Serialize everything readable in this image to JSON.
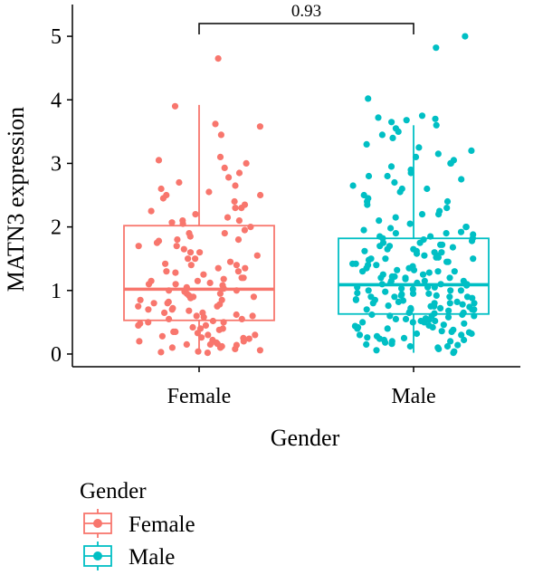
{
  "chart_data": {
    "type": "box",
    "xlabel": "Gender",
    "ylabel": "MATN3 expression",
    "ylim": [
      -0.2,
      5.5
    ],
    "yticks": [
      "0",
      "1",
      "2",
      "3",
      "4",
      "5"
    ],
    "categories": [
      "Female",
      "Male"
    ],
    "series": [
      {
        "name": "Female",
        "color": "#F8766D",
        "box": {
          "min": 0.02,
          "q1": 0.53,
          "median": 1.02,
          "q3": 2.02,
          "max": 3.92
        },
        "points": [
          4.65,
          3.9,
          3.62,
          3.58,
          3.45,
          3.1,
          3.05,
          3.0,
          2.93,
          2.85,
          2.78,
          2.7,
          2.65,
          2.6,
          2.55,
          2.5,
          2.45,
          2.4,
          2.35,
          2.3,
          2.25,
          2.2,
          2.15,
          2.1,
          2.07,
          2.05,
          2.0,
          1.95,
          1.9,
          1.85,
          1.8,
          1.78,
          1.75,
          1.7,
          1.65,
          1.6,
          1.55,
          1.5,
          1.45,
          1.42,
          1.4,
          1.35,
          1.3,
          1.28,
          1.25,
          1.2,
          1.18,
          1.15,
          1.12,
          1.1,
          1.08,
          1.05,
          1.03,
          1.0,
          0.98,
          0.95,
          0.92,
          0.9,
          0.88,
          0.85,
          0.82,
          0.8,
          0.78,
          0.75,
          0.72,
          0.7,
          0.68,
          0.65,
          0.62,
          0.6,
          0.58,
          0.55,
          0.52,
          0.5,
          0.48,
          0.45,
          0.42,
          0.4,
          0.38,
          0.35,
          0.33,
          0.3,
          0.28,
          0.26,
          0.24,
          0.22,
          0.2,
          0.18,
          0.16,
          0.15,
          0.14,
          0.12,
          0.1,
          0.08,
          0.06,
          0.04,
          0.03,
          0.02,
          0.1,
          0.2,
          0.3,
          0.4,
          0.5,
          0.6,
          0.7,
          0.8,
          0.9,
          1.0,
          1.1,
          1.2,
          1.3,
          1.4,
          1.5,
          1.6,
          1.7,
          1.8,
          1.9,
          2.1,
          2.3,
          2.5,
          0.15,
          0.25,
          0.35,
          0.45,
          0.55,
          0.65,
          0.75,
          0.85,
          0.95,
          1.15,
          1.35
        ]
      },
      {
        "name": "Male",
        "color": "#00BFC4",
        "box": {
          "min": 0.02,
          "q1": 0.63,
          "median": 1.09,
          "q3": 1.82,
          "max": 3.6
        },
        "points": [
          5.0,
          4.82,
          4.02,
          3.75,
          3.72,
          3.7,
          3.68,
          3.65,
          3.6,
          3.55,
          3.5,
          3.45,
          3.4,
          3.3,
          3.25,
          3.2,
          3.15,
          3.1,
          3.05,
          3.0,
          2.95,
          2.9,
          2.85,
          2.8,
          2.75,
          2.7,
          2.65,
          2.6,
          2.55,
          2.5,
          2.45,
          2.4,
          2.35,
          2.3,
          2.25,
          2.2,
          2.15,
          2.1,
          2.05,
          2.0,
          1.98,
          1.95,
          1.92,
          1.9,
          1.88,
          1.85,
          1.82,
          1.8,
          1.78,
          1.75,
          1.72,
          1.7,
          1.68,
          1.65,
          1.62,
          1.6,
          1.58,
          1.55,
          1.52,
          1.5,
          1.48,
          1.45,
          1.42,
          1.4,
          1.38,
          1.35,
          1.32,
          1.3,
          1.28,
          1.25,
          1.22,
          1.2,
          1.18,
          1.15,
          1.12,
          1.1,
          1.08,
          1.05,
          1.03,
          1.0,
          0.98,
          0.96,
          0.94,
          0.92,
          0.9,
          0.88,
          0.86,
          0.84,
          0.82,
          0.8,
          0.78,
          0.76,
          0.74,
          0.72,
          0.7,
          0.68,
          0.66,
          0.64,
          0.62,
          0.6,
          0.58,
          0.56,
          0.54,
          0.52,
          0.5,
          0.48,
          0.46,
          0.44,
          0.42,
          0.4,
          0.38,
          0.36,
          0.34,
          0.32,
          0.3,
          0.28,
          0.26,
          0.24,
          0.22,
          0.2,
          0.18,
          0.16,
          0.14,
          0.12,
          0.1,
          0.08,
          0.06,
          0.04,
          0.02,
          1.9,
          1.7,
          1.5,
          1.3,
          1.1,
          0.9,
          0.7,
          0.5,
          0.3,
          0.2,
          0.45,
          0.65,
          0.85,
          1.05,
          1.25,
          1.45,
          1.65,
          1.85,
          2.2,
          0.15,
          0.35,
          0.55,
          0.75,
          0.95,
          1.15,
          1.35,
          1.55,
          1.75,
          2.4,
          0.25,
          0.4,
          0.6,
          0.8,
          1.0,
          1.2,
          1.4,
          1.6,
          2.0,
          2.6,
          0.12,
          0.32,
          0.52,
          0.72,
          0.92,
          1.12,
          1.32,
          1.52,
          1.72,
          2.8,
          0.22,
          0.42,
          0.62,
          0.82,
          1.02,
          1.22,
          1.42,
          1.62,
          1.82,
          3.0,
          0.5,
          0.7,
          0.9,
          1.1,
          1.3,
          1.5,
          0.6,
          0.8,
          1.0,
          1.2,
          0.55,
          0.75,
          0.95,
          1.15,
          0.65,
          0.85,
          1.05,
          0.7,
          0.9,
          0.8
        ]
      }
    ],
    "annotation": {
      "text": "0.93",
      "between": [
        "Female",
        "Male"
      ],
      "y": 5.2
    },
    "legend": {
      "title": "Gender",
      "position": "bottom-left",
      "entries": [
        "Female",
        "Male"
      ]
    },
    "grid": false
  }
}
